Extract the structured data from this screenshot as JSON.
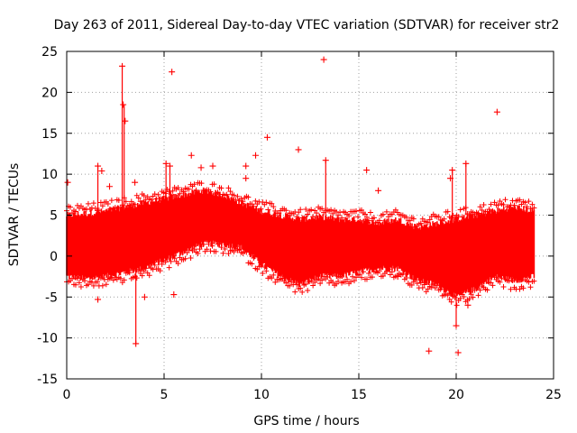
{
  "chart_data": {
    "type": "scatter",
    "title": "Day 263 of 2011, Sidereal Day-to-day VTEC variation (SDTVAR) for receiver str2",
    "xlabel": "GPS time / hours",
    "ylabel": "SDTVAR / TECUs",
    "xlim": [
      0,
      25
    ],
    "ylim": [
      -15,
      25
    ],
    "xticks": [
      0,
      5,
      10,
      15,
      20,
      25
    ],
    "yticks": [
      -15,
      -10,
      -5,
      0,
      5,
      10,
      15,
      20,
      25
    ],
    "grid": true,
    "marker": "+",
    "color": "#ff0000",
    "series": [
      {
        "name": "SDTVAR",
        "band": [
          {
            "x": 0.0,
            "low": -2.5,
            "high": 5.0
          },
          {
            "x": 1.0,
            "low": -2.8,
            "high": 5.2
          },
          {
            "x": 2.0,
            "low": -2.5,
            "high": 5.5
          },
          {
            "x": 3.0,
            "low": -2.0,
            "high": 6.0
          },
          {
            "x": 4.0,
            "low": -1.5,
            "high": 6.5
          },
          {
            "x": 5.0,
            "low": -0.5,
            "high": 7.0
          },
          {
            "x": 6.0,
            "low": 0.5,
            "high": 7.5
          },
          {
            "x": 7.0,
            "low": 1.5,
            "high": 8.0
          },
          {
            "x": 8.0,
            "low": 1.5,
            "high": 7.5
          },
          {
            "x": 9.0,
            "low": 1.0,
            "high": 6.5
          },
          {
            "x": 10.0,
            "low": -1.0,
            "high": 5.5
          },
          {
            "x": 11.0,
            "low": -2.5,
            "high": 5.0
          },
          {
            "x": 12.0,
            "low": -3.5,
            "high": 4.5
          },
          {
            "x": 13.0,
            "low": -2.5,
            "high": 4.8
          },
          {
            "x": 14.0,
            "low": -2.5,
            "high": 4.5
          },
          {
            "x": 15.0,
            "low": -2.0,
            "high": 4.5
          },
          {
            "x": 16.0,
            "low": -1.5,
            "high": 4.0
          },
          {
            "x": 17.0,
            "low": -1.5,
            "high": 4.5
          },
          {
            "x": 18.0,
            "low": -3.0,
            "high": 3.5
          },
          {
            "x": 19.0,
            "low": -3.5,
            "high": 4.0
          },
          {
            "x": 20.0,
            "low": -5.0,
            "high": 4.5
          },
          {
            "x": 21.0,
            "low": -4.0,
            "high": 5.0
          },
          {
            "x": 22.0,
            "low": -2.5,
            "high": 5.5
          },
          {
            "x": 23.0,
            "low": -3.0,
            "high": 6.0
          },
          {
            "x": 24.0,
            "low": -2.5,
            "high": 5.5
          }
        ],
        "outliers": [
          {
            "x": 0.05,
            "y": 9.0
          },
          {
            "x": 1.6,
            "y": -5.3
          },
          {
            "x": 1.6,
            "y": 11.0
          },
          {
            "x": 1.8,
            "y": 10.4
          },
          {
            "x": 2.2,
            "y": 8.5
          },
          {
            "x": 2.85,
            "y": 23.2
          },
          {
            "x": 2.9,
            "y": 18.5
          },
          {
            "x": 3.0,
            "y": 16.5
          },
          {
            "x": 3.5,
            "y": 9.0
          },
          {
            "x": 3.55,
            "y": -10.7
          },
          {
            "x": 4.0,
            "y": -5.0
          },
          {
            "x": 5.1,
            "y": 11.3
          },
          {
            "x": 5.3,
            "y": 11.0
          },
          {
            "x": 5.4,
            "y": 22.5
          },
          {
            "x": 5.5,
            "y": -4.7
          },
          {
            "x": 6.4,
            "y": 12.3
          },
          {
            "x": 6.9,
            "y": 10.8
          },
          {
            "x": 7.5,
            "y": 11.0
          },
          {
            "x": 9.2,
            "y": 11.0
          },
          {
            "x": 9.2,
            "y": 9.5
          },
          {
            "x": 9.7,
            "y": 12.3
          },
          {
            "x": 10.3,
            "y": 14.5
          },
          {
            "x": 11.9,
            "y": 13.0
          },
          {
            "x": 13.2,
            "y": 24.0
          },
          {
            "x": 13.3,
            "y": 11.7
          },
          {
            "x": 15.4,
            "y": 10.5
          },
          {
            "x": 16.0,
            "y": 8.0
          },
          {
            "x": 17.0,
            "y": -2.5
          },
          {
            "x": 18.6,
            "y": -11.6
          },
          {
            "x": 19.7,
            "y": 9.5
          },
          {
            "x": 19.8,
            "y": 10.5
          },
          {
            "x": 20.1,
            "y": -11.8
          },
          {
            "x": 20.0,
            "y": -8.5
          },
          {
            "x": 20.5,
            "y": 11.3
          },
          {
            "x": 20.6,
            "y": -6.0
          },
          {
            "x": 22.1,
            "y": 17.6
          }
        ],
        "spikes": [
          {
            "x": 1.6,
            "low": 5.0,
            "high": 11.0
          },
          {
            "x": 2.85,
            "low": 5.5,
            "high": 23.2
          },
          {
            "x": 2.95,
            "low": 5.5,
            "high": 18.5
          },
          {
            "x": 3.55,
            "low": -10.7,
            "high": -2.0
          },
          {
            "x": 5.1,
            "low": 6.5,
            "high": 11.3
          },
          {
            "x": 5.3,
            "low": 6.5,
            "high": 11.0
          },
          {
            "x": 13.3,
            "low": 4.8,
            "high": 11.7
          },
          {
            "x": 19.8,
            "low": 4.5,
            "high": 10.5
          },
          {
            "x": 20.0,
            "low": -8.5,
            "high": -4.0
          },
          {
            "x": 20.5,
            "low": 5.0,
            "high": 11.3
          }
        ]
      }
    ]
  }
}
